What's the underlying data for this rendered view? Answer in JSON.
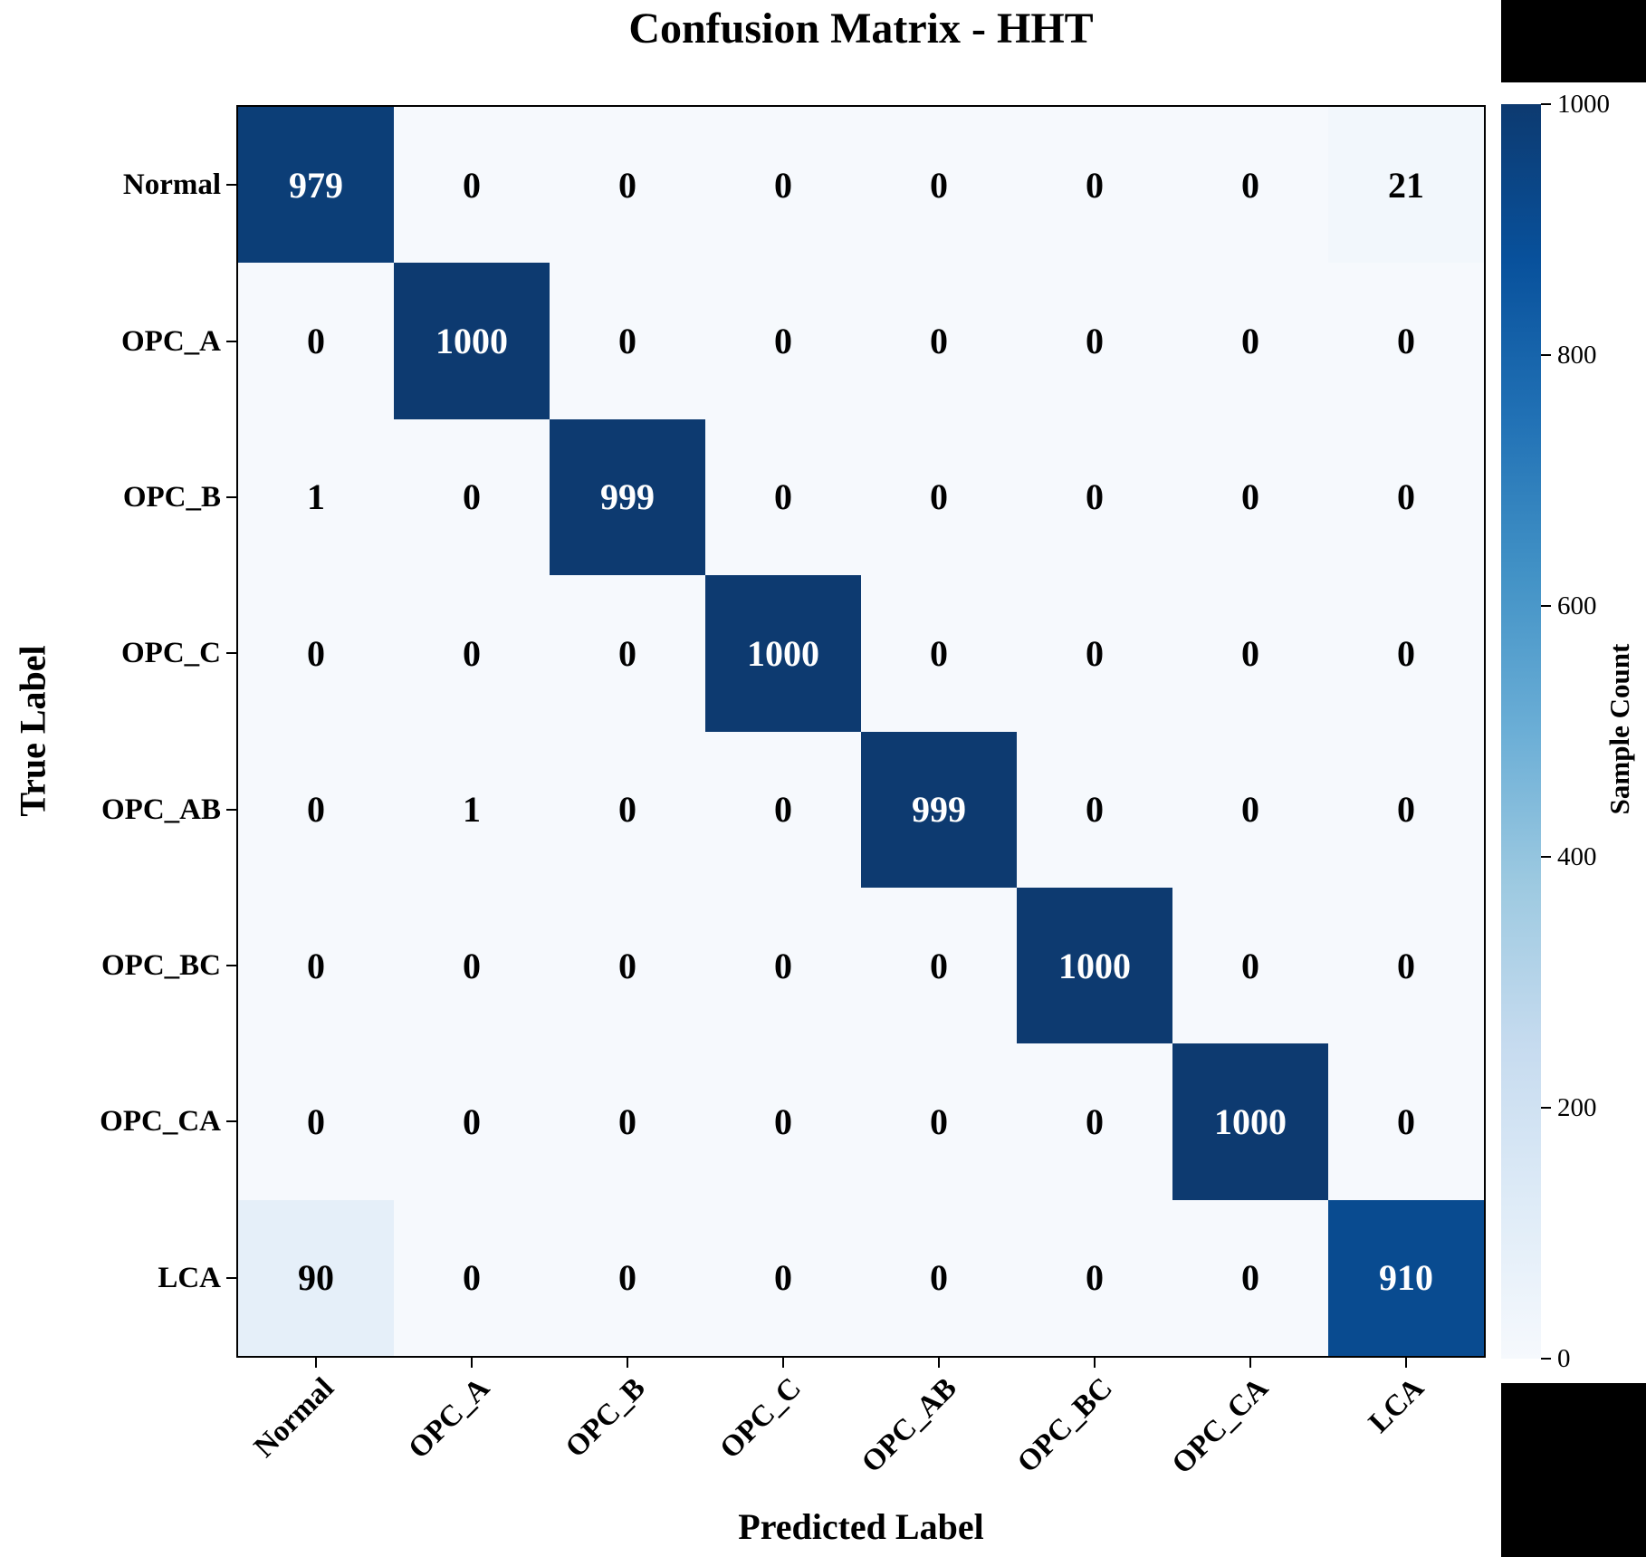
{
  "chart_data": {
    "type": "heatmap",
    "title": "Confusion Matrix - HHT",
    "xlabel": "Predicted Label",
    "ylabel": "True Label",
    "categories": [
      "Normal",
      "OPC_A",
      "OPC_B",
      "OPC_C",
      "OPC_AB",
      "OPC_BC",
      "OPC_CA",
      "LCA"
    ],
    "matrix": [
      [
        979,
        0,
        0,
        0,
        0,
        0,
        0,
        21
      ],
      [
        0,
        1000,
        0,
        0,
        0,
        0,
        0,
        0
      ],
      [
        1,
        0,
        999,
        0,
        0,
        0,
        0,
        0
      ],
      [
        0,
        0,
        0,
        1000,
        0,
        0,
        0,
        0
      ],
      [
        0,
        1,
        0,
        0,
        999,
        0,
        0,
        0
      ],
      [
        0,
        0,
        0,
        0,
        0,
        1000,
        0,
        0
      ],
      [
        0,
        0,
        0,
        0,
        0,
        0,
        1000,
        0
      ],
      [
        90,
        0,
        0,
        0,
        0,
        0,
        0,
        910
      ]
    ],
    "vmin": 0,
    "vmax": 1000,
    "colormap": "Blues",
    "grid": false,
    "colorbar": {
      "label": "Sample Count",
      "ticks": [
        1000,
        800,
        600,
        400,
        200,
        0
      ]
    },
    "colors": {
      "diagonal_max": "#0d3a70",
      "background_min": "#f6f9fd",
      "cell_text_dark": "#000000",
      "cell_text_light": "#ffffff",
      "axis": "#000000"
    }
  }
}
